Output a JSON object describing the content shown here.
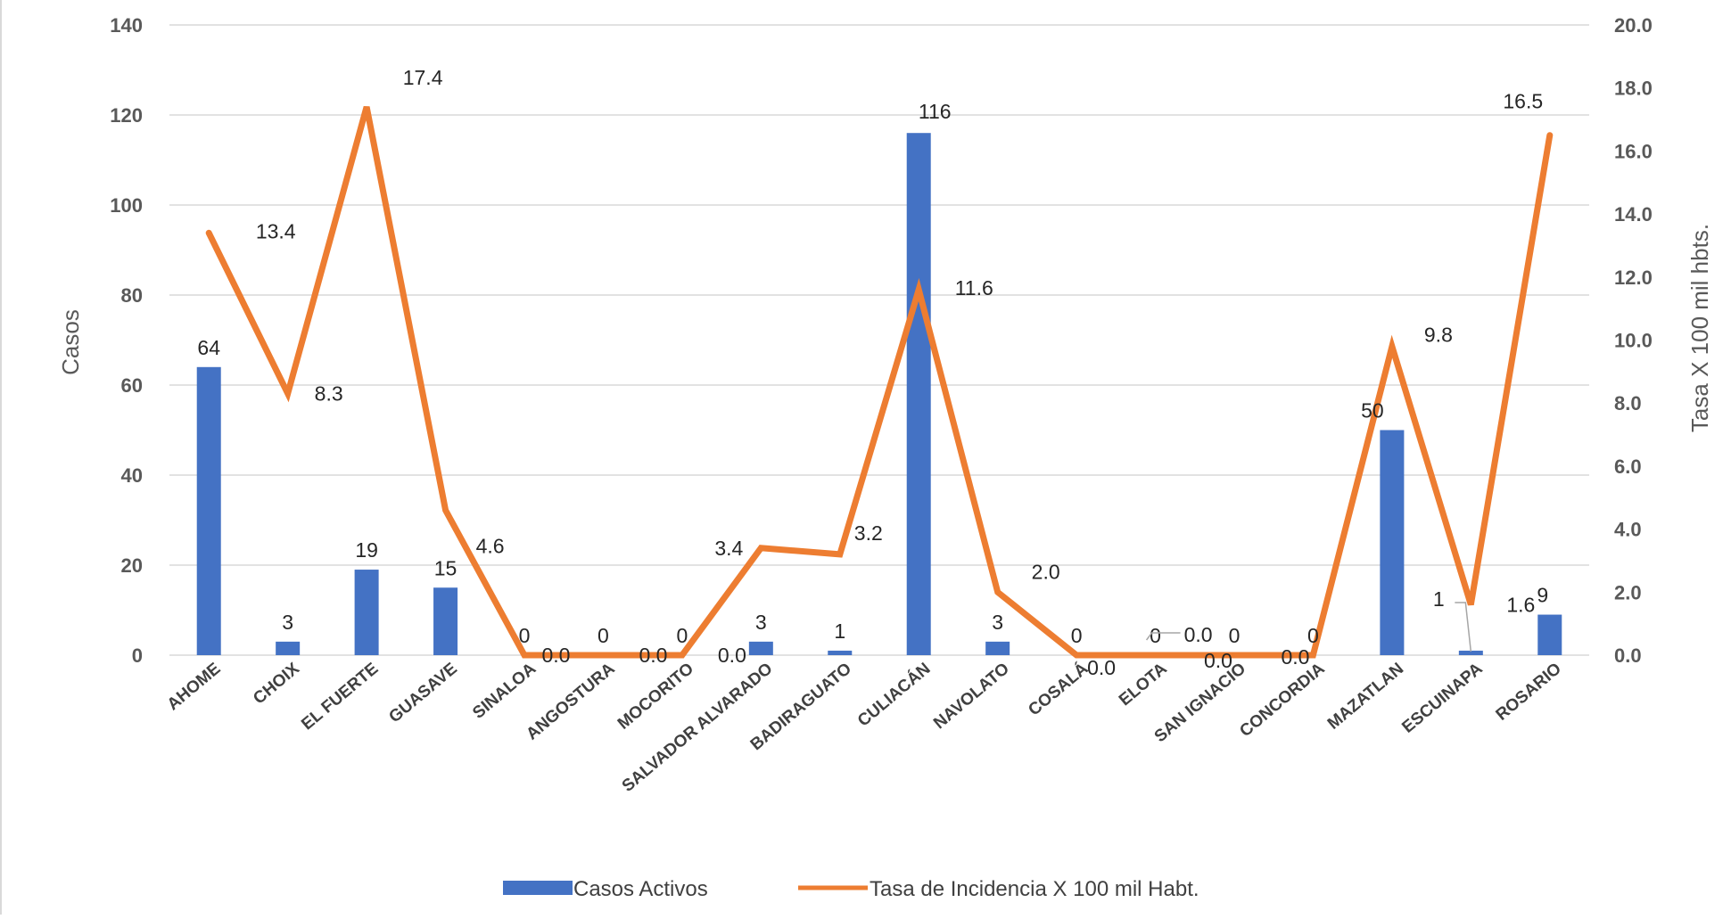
{
  "chart_data": {
    "type": "bar+line",
    "categories": [
      "AHOME",
      "CHOIX",
      "EL FUERTE",
      "GUASAVE",
      "SINALOA",
      "ANGOSTURA",
      "MOCORITO",
      "SALVADOR ALVARADO",
      "BADIRAGUATO",
      "CULIACÁN",
      "NAVOLATO",
      "COSALÁ",
      "ELOTA",
      "SAN IGNACIO",
      "CONCORDIA",
      "MAZATLAN",
      "ESCUINAPA",
      "ROSARIO"
    ],
    "series": [
      {
        "name": "Casos Activos",
        "type": "bar",
        "axis": "left",
        "color": "#4472C4",
        "values": [
          64,
          3,
          19,
          15,
          0,
          0,
          0,
          3,
          1,
          116,
          3,
          0,
          0,
          0,
          0,
          50,
          1,
          9
        ],
        "labels": [
          "64",
          "3",
          "19",
          "15",
          "0",
          "0",
          "0",
          "3",
          "1",
          "116",
          "3",
          "0",
          "0",
          "0",
          "0",
          "50",
          "1",
          "9"
        ]
      },
      {
        "name": "Tasa de Incidencia X 100 mil Habt.",
        "type": "line",
        "axis": "right",
        "color": "#ED7D31",
        "values": [
          13.4,
          8.3,
          17.4,
          4.6,
          0.0,
          0.0,
          0.0,
          3.4,
          3.2,
          11.6,
          2.0,
          0.0,
          0.0,
          0.0,
          0.0,
          9.8,
          1.6,
          16.5
        ],
        "labels": [
          "13.4",
          "8.3",
          "17.4",
          "4.6",
          "0.0",
          "0.0",
          "0.0",
          "3.4",
          "3.2",
          "11.6",
          "2.0",
          "0.0",
          "0.0",
          "0.0",
          "0.0",
          "9.8",
          "1.6",
          "16.5"
        ]
      }
    ],
    "y_left": {
      "label": "Casos",
      "min": 0,
      "max": 140,
      "ticks": [
        "0",
        "20",
        "40",
        "60",
        "80",
        "100",
        "120",
        "140"
      ]
    },
    "y_right": {
      "label": "Tasa X 100 mil hbts.",
      "min": 0,
      "max": 20,
      "ticks": [
        "0.0",
        "2.0",
        "4.0",
        "6.0",
        "8.0",
        "10.0",
        "12.0",
        "14.0",
        "16.0",
        "18.0",
        "20.0"
      ]
    },
    "grid": true,
    "legend_position": "bottom"
  }
}
